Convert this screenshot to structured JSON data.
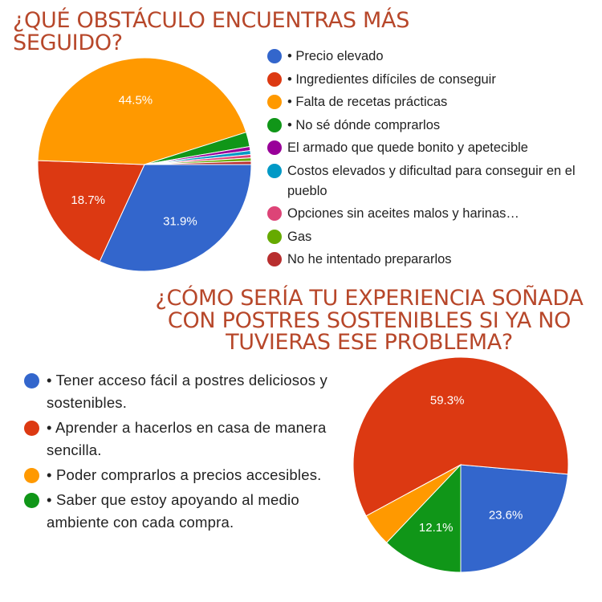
{
  "charts": [
    {
      "title": "¿QUÉ OBSTÁCULO ENCUENTRAS MÁS SEGUIDO?",
      "chart_data": {
        "type": "pie",
        "categories": [
          "• Precio elevado",
          "• Ingredientes difíciles de conseguir",
          "• Falta de recetas prácticas",
          "• No sé dónde comprarlos",
          "El armado que quede bonito y apetecible",
          "Costos elevados y dificultad para conseguir en el pueblo",
          "Opciones sin aceites malos y harinas…",
          "Gas",
          "No he intentado prepararlos"
        ],
        "values": [
          31.9,
          18.7,
          44.5,
          2.2,
          0.6,
          0.6,
          0.5,
          0.5,
          0.5
        ],
        "data_labels": [
          "31.9%",
          "18.7%",
          "44.5%",
          "",
          "",
          "",
          "",
          "",
          ""
        ],
        "colors": [
          "#3366cc",
          "#dc3912",
          "#ff9900",
          "#109618",
          "#990099",
          "#0099c6",
          "#dd4477",
          "#66aa00",
          "#b82e2e"
        ],
        "legend_position": "right"
      }
    },
    {
      "title": "¿CÓMO SERÍA TU EXPERIENCIA SOÑADA CON POSTRES SOSTENIBLES SI YA NO TUVIERAS ESE PROBLEMA?",
      "chart_data": {
        "type": "pie",
        "categories": [
          "• Tener acceso fácil a postres deliciosos y sostenibles.",
          "• Aprender a hacerlos en casa de manera sencilla.",
          "• Poder comprarlos a precios accesibles.",
          "• Saber que estoy apoyando al medio ambiente con cada compra."
        ],
        "values": [
          23.6,
          59.3,
          5.0,
          12.1
        ],
        "data_labels": [
          "23.6%",
          "59.3%",
          "",
          "12.1%"
        ],
        "colors": [
          "#3366cc",
          "#dc3912",
          "#ff9900",
          "#109618"
        ],
        "legend_position": "left"
      }
    }
  ]
}
